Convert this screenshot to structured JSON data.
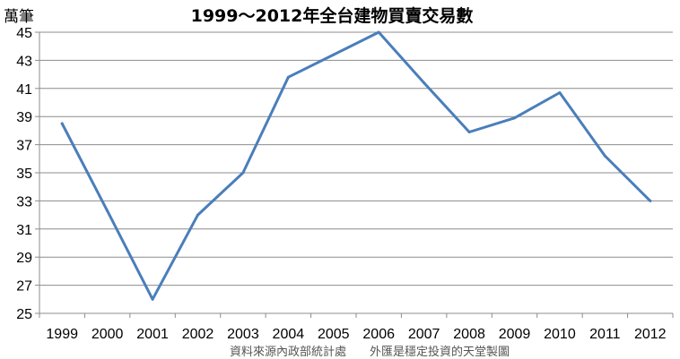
{
  "chart_data": {
    "type": "line",
    "title": "1999～2012年全台建物買賣交易數",
    "ylabel": "萬筆",
    "xlabel": "",
    "categories": [
      "1999",
      "2000",
      "2001",
      "2002",
      "2003",
      "2004",
      "2005",
      "2006",
      "2007",
      "2008",
      "2009",
      "2010",
      "2011",
      "2012"
    ],
    "series": [
      {
        "values": [
          38.5,
          32.3,
          26.0,
          32.0,
          35.0,
          41.8,
          43.4,
          45.0,
          41.4,
          37.9,
          38.9,
          40.7,
          36.2,
          33.0
        ],
        "color": "#4a7ebb"
      }
    ],
    "ylim": [
      25,
      45
    ],
    "yticks": [
      25,
      27,
      29,
      31,
      33,
      35,
      37,
      39,
      41,
      43,
      45
    ],
    "grid": true,
    "legend": "none",
    "source_note": "資料來源內政部統計處　　外匯是穩定投資的天堂製圖"
  }
}
